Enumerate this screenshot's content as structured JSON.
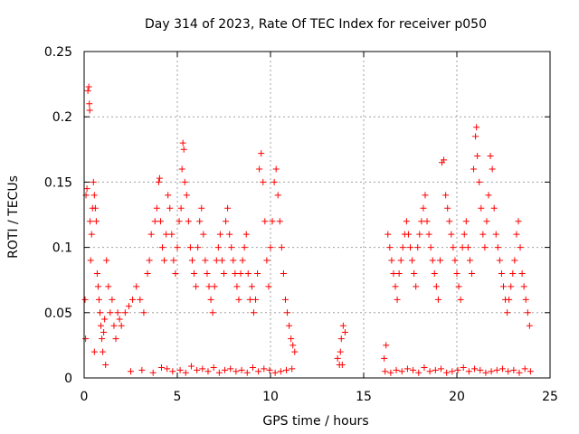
{
  "chart_data": {
    "type": "scatter",
    "title": "Day 314 of 2023, Rate Of TEC Index for receiver p050",
    "xlabel": "GPS time / hours",
    "ylabel": "ROTI / TECUs",
    "xlim": [
      0,
      25
    ],
    "ylim": [
      0,
      0.25
    ],
    "xticks": [
      0,
      5,
      10,
      15,
      20,
      25
    ],
    "xtick_labels": [
      "0",
      "5",
      "10",
      "15",
      "20",
      "25"
    ],
    "yticks": [
      0,
      0.05,
      0.1,
      0.15,
      0.2,
      0.25
    ],
    "ytick_labels": [
      "0",
      "0.05",
      "0.1",
      "0.15",
      "0.2",
      "0.25"
    ],
    "grid": true,
    "marker": "+",
    "series": [
      {
        "name": "ROTI",
        "color": "#ff0000",
        "x": [
          0.05,
          0.1,
          0.15,
          0.2,
          0.25,
          0.28,
          0.3,
          0.32,
          0.35,
          0.4,
          0.45,
          0.5,
          0.55,
          0.6,
          0.65,
          0.7,
          0.75,
          0.8,
          0.85,
          0.9,
          0.95,
          1.0,
          1.05,
          1.1,
          1.2,
          1.3,
          1.4,
          1.5,
          1.6,
          1.7,
          1.8,
          1.9,
          2.0,
          2.2,
          2.4,
          2.6,
          2.8,
          3.0,
          3.2,
          3.4,
          3.5,
          3.6,
          3.8,
          3.9,
          4.0,
          4.05,
          4.1,
          4.2,
          4.3,
          4.4,
          4.5,
          4.6,
          4.7,
          4.8,
          4.9,
          5.0,
          5.1,
          5.2,
          5.25,
          5.3,
          5.35,
          5.4,
          5.5,
          5.6,
          5.7,
          5.8,
          5.9,
          6.0,
          6.1,
          6.2,
          6.3,
          6.4,
          6.5,
          6.6,
          6.7,
          6.8,
          6.9,
          7.0,
          7.1,
          7.2,
          7.3,
          7.4,
          7.5,
          7.6,
          7.7,
          7.8,
          7.9,
          8.0,
          8.1,
          8.2,
          8.3,
          8.4,
          8.5,
          8.6,
          8.7,
          8.8,
          8.9,
          9.0,
          9.1,
          9.2,
          9.3,
          9.4,
          9.5,
          9.6,
          9.7,
          9.8,
          9.9,
          10.0,
          10.1,
          10.2,
          10.3,
          10.4,
          10.5,
          10.6,
          10.7,
          10.8,
          10.9,
          11.0,
          11.1,
          11.2,
          11.3,
          13.6,
          13.7,
          13.8,
          13.9,
          14.0,
          13.75,
          13.85,
          16.1,
          16.2,
          16.3,
          16.4,
          16.5,
          16.6,
          16.7,
          16.8,
          16.9,
          17.0,
          17.1,
          17.2,
          17.3,
          17.4,
          17.5,
          17.6,
          17.7,
          17.8,
          17.9,
          18.0,
          18.1,
          18.2,
          18.3,
          18.4,
          18.5,
          18.6,
          18.7,
          18.8,
          18.9,
          19.0,
          19.1,
          19.2,
          19.3,
          19.4,
          19.5,
          19.6,
          19.7,
          19.8,
          19.9,
          20.0,
          20.1,
          20.2,
          20.3,
          20.4,
          20.5,
          20.6,
          20.7,
          20.8,
          20.9,
          21.0,
          21.05,
          21.1,
          21.2,
          21.3,
          21.4,
          21.5,
          21.6,
          21.7,
          21.8,
          21.9,
          22.0,
          22.1,
          22.2,
          22.3,
          22.4,
          22.5,
          22.6,
          22.7,
          22.8,
          22.9,
          23.0,
          23.1,
          23.2,
          23.3,
          23.4,
          23.5,
          23.6,
          23.7,
          23.8,
          23.9,
          0.08,
          0.55,
          1.15,
          2.5,
          3.1,
          3.7,
          4.15,
          4.45,
          4.75,
          5.15,
          5.45,
          5.75,
          6.05,
          6.35,
          6.65,
          6.95,
          7.25,
          7.55,
          7.85,
          8.15,
          8.45,
          8.75,
          9.05,
          9.35,
          9.65,
          9.95,
          10.25,
          10.55,
          10.85,
          11.15,
          16.15,
          16.45,
          16.75,
          17.05,
          17.35,
          17.65,
          17.95,
          18.25,
          18.55,
          18.85,
          19.15,
          19.45,
          19.75,
          20.05,
          20.35,
          20.65,
          20.95,
          21.25,
          21.55,
          21.85,
          22.15,
          22.45,
          22.75,
          23.05,
          23.35,
          23.65,
          23.95
        ],
        "y": [
          0.06,
          0.14,
          0.145,
          0.22,
          0.223,
          0.21,
          0.205,
          0.12,
          0.09,
          0.11,
          0.13,
          0.15,
          0.14,
          0.13,
          0.12,
          0.08,
          0.07,
          0.06,
          0.05,
          0.04,
          0.03,
          0.02,
          0.035,
          0.045,
          0.09,
          0.07,
          0.05,
          0.06,
          0.04,
          0.03,
          0.05,
          0.045,
          0.04,
          0.05,
          0.055,
          0.06,
          0.07,
          0.06,
          0.05,
          0.08,
          0.09,
          0.11,
          0.12,
          0.13,
          0.15,
          0.153,
          0.12,
          0.1,
          0.09,
          0.11,
          0.14,
          0.13,
          0.11,
          0.09,
          0.08,
          0.1,
          0.12,
          0.13,
          0.16,
          0.18,
          0.175,
          0.15,
          0.14,
          0.12,
          0.1,
          0.09,
          0.08,
          0.07,
          0.1,
          0.12,
          0.13,
          0.11,
          0.09,
          0.08,
          0.07,
          0.06,
          0.05,
          0.07,
          0.09,
          0.1,
          0.11,
          0.09,
          0.08,
          0.12,
          0.13,
          0.11,
          0.1,
          0.09,
          0.08,
          0.07,
          0.06,
          0.08,
          0.09,
          0.1,
          0.11,
          0.08,
          0.06,
          0.07,
          0.05,
          0.06,
          0.08,
          0.16,
          0.172,
          0.15,
          0.12,
          0.09,
          0.07,
          0.1,
          0.12,
          0.15,
          0.16,
          0.14,
          0.12,
          0.1,
          0.08,
          0.06,
          0.05,
          0.04,
          0.03,
          0.025,
          0.02,
          0.015,
          0.01,
          0.03,
          0.04,
          0.035,
          0.02,
          0.01,
          0.015,
          0.025,
          0.11,
          0.1,
          0.09,
          0.08,
          0.07,
          0.06,
          0.08,
          0.09,
          0.1,
          0.11,
          0.12,
          0.11,
          0.1,
          0.09,
          0.08,
          0.07,
          0.1,
          0.11,
          0.12,
          0.13,
          0.14,
          0.12,
          0.11,
          0.1,
          0.09,
          0.08,
          0.07,
          0.06,
          0.09,
          0.165,
          0.167,
          0.14,
          0.13,
          0.12,
          0.11,
          0.1,
          0.09,
          0.08,
          0.07,
          0.06,
          0.1,
          0.11,
          0.12,
          0.1,
          0.09,
          0.08,
          0.16,
          0.185,
          0.192,
          0.17,
          0.15,
          0.13,
          0.11,
          0.1,
          0.12,
          0.14,
          0.17,
          0.16,
          0.13,
          0.11,
          0.1,
          0.09,
          0.08,
          0.07,
          0.06,
          0.05,
          0.06,
          0.07,
          0.08,
          0.09,
          0.11,
          0.12,
          0.1,
          0.08,
          0.07,
          0.06,
          0.05,
          0.04,
          0.03,
          0.02,
          0.01,
          0.005,
          0.006,
          0.004,
          0.008,
          0.007,
          0.005,
          0.006,
          0.004,
          0.009,
          0.006,
          0.007,
          0.005,
          0.008,
          0.004,
          0.006,
          0.007,
          0.005,
          0.006,
          0.004,
          0.008,
          0.005,
          0.007,
          0.006,
          0.004,
          0.005,
          0.006,
          0.007,
          0.005,
          0.004,
          0.006,
          0.005,
          0.007,
          0.006,
          0.004,
          0.008,
          0.005,
          0.006,
          0.007,
          0.004,
          0.005,
          0.006,
          0.008,
          0.005,
          0.007,
          0.006,
          0.004,
          0.005,
          0.006,
          0.007,
          0.005,
          0.006,
          0.004,
          0.007,
          0.005
        ]
      }
    ]
  }
}
